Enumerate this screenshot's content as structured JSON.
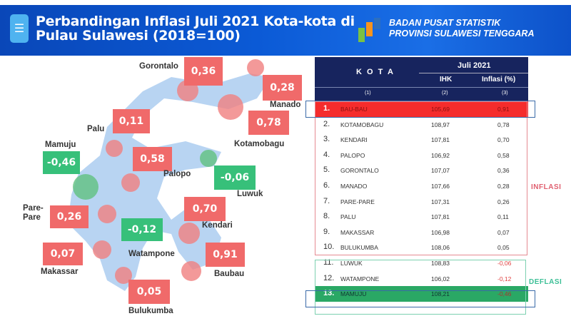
{
  "header": {
    "title_line1": "Perbandingan Inflasi Juli 2021 Kota-kota di",
    "title_line2": "Pulau Sulawesi (2018=100)",
    "org_line1": "BADAN PUSAT STATISTIK",
    "org_line2": "PROVINSI SULAWESI TENGGARA",
    "icon": "database-icon"
  },
  "colors": {
    "header": "#0b5ad6",
    "inflasi": "#f06a6a",
    "deflasi": "#37c07a",
    "table_header": "#17245e",
    "top_row": "#f52c2c",
    "bottom_row": "#2aa865"
  },
  "map": {
    "labels": [
      {
        "city": "Gorontalo",
        "value": "0,36"
      },
      {
        "city": "Manado",
        "value": "0,28"
      },
      {
        "city": "Kotamobagu",
        "value": "0,78"
      },
      {
        "city": "Palu",
        "value": "0,11"
      },
      {
        "city": "Palopo",
        "value": "0,58"
      },
      {
        "city": "Mamuju",
        "value": "-0,46"
      },
      {
        "city": "Luwuk",
        "value": "-0,06"
      },
      {
        "city": "Pare-Pare",
        "value": "0,26"
      },
      {
        "city": "Kendari",
        "value": "0,70"
      },
      {
        "city": "Watampone",
        "value": "-0,12"
      },
      {
        "city": "Makassar",
        "value": "0,07"
      },
      {
        "city": "Baubau",
        "value": "0,91"
      },
      {
        "city": "Bulukumba",
        "value": "0,05"
      }
    ]
  },
  "table": {
    "col_kota": "K O T A",
    "period": "Juli 2021",
    "col_ihk": "IHK",
    "col_inflasi": "Inflasi (%)",
    "idx": [
      "(1)",
      "(2)",
      "(3)"
    ],
    "rows": [
      {
        "no": "1.",
        "kota": "BAU-BAU",
        "ihk": "105,69",
        "inflasi": "0,91"
      },
      {
        "no": "2.",
        "kota": "KOTAMOBAGU",
        "ihk": "108,97",
        "inflasi": "0,78"
      },
      {
        "no": "3.",
        "kota": "KENDARI",
        "ihk": "107,81",
        "inflasi": "0,70"
      },
      {
        "no": "4.",
        "kota": "PALOPO",
        "ihk": "106,92",
        "inflasi": "0,58"
      },
      {
        "no": "5.",
        "kota": "GORONTALO",
        "ihk": "107,07",
        "inflasi": "0,36"
      },
      {
        "no": "6.",
        "kota": "MANADO",
        "ihk": "107,66",
        "inflasi": "0,28"
      },
      {
        "no": "7.",
        "kota": "PARE-PARE",
        "ihk": "107,31",
        "inflasi": "0,26"
      },
      {
        "no": "8.",
        "kota": "PALU",
        "ihk": "107,81",
        "inflasi": "0,11"
      },
      {
        "no": "9.",
        "kota": "MAKASSAR",
        "ihk": "106,98",
        "inflasi": "0,07"
      },
      {
        "no": "10.",
        "kota": "BULUKUMBA",
        "ihk": "108,06",
        "inflasi": "0,05"
      },
      {
        "no": "11.",
        "kota": "LUWUK",
        "ihk": "108,83",
        "inflasi": "-0,06"
      },
      {
        "no": "12.",
        "kota": "WATAMPONE",
        "ihk": "106,02",
        "inflasi": "-0,12"
      },
      {
        "no": "13.",
        "kota": "MAMUJU",
        "ihk": "108,21",
        "inflasi": "-0,46"
      }
    ],
    "inflasi_label": "INFLASI",
    "deflasi_label": "DEFLASI"
  }
}
